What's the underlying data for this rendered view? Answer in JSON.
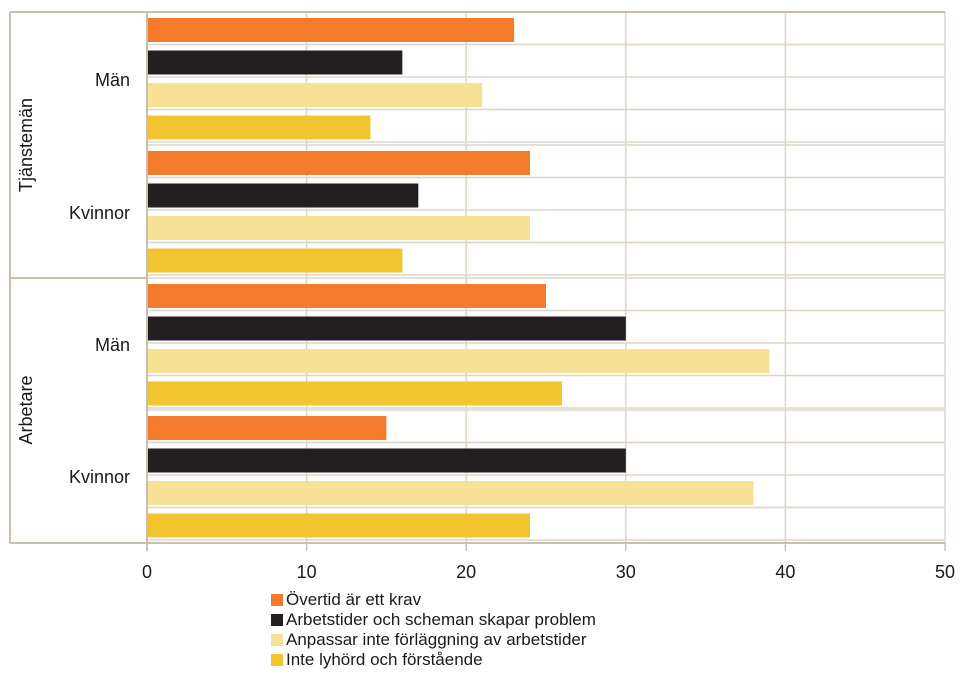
{
  "chart_data": {
    "type": "bar",
    "orientation": "horizontal",
    "title": "",
    "xlabel": "",
    "ylabel": "",
    "xlim": [
      0,
      50
    ],
    "xticks": [
      0,
      10,
      20,
      30,
      40,
      50
    ],
    "grid": true,
    "legend_position": "bottom",
    "groups": [
      {
        "name": "Tjänstemän",
        "subgroups": [
          "Män",
          "Kvinnor"
        ]
      },
      {
        "name": "Arbetare",
        "subgroups": [
          "Män",
          "Kvinnor"
        ]
      }
    ],
    "categories": [
      "Tjänstemän – Män",
      "Tjänstemän – Kvinnor",
      "Arbetare – Män",
      "Arbetare – Kvinnor"
    ],
    "series": [
      {
        "name": "Övertid är ett krav",
        "color": "#f47a2c",
        "values": [
          23,
          24,
          25,
          15
        ]
      },
      {
        "name": "Arbetstider och scheman skapar problem",
        "color": "#231f20",
        "values": [
          16,
          17,
          30,
          30
        ]
      },
      {
        "name": "Anpassar inte förläggning av arbetstider",
        "color": "#f6e195",
        "values": [
          21,
          24,
          39,
          38
        ]
      },
      {
        "name": "Inte lyhörd och förstående",
        "color": "#f2c530",
        "values": [
          14,
          16,
          26,
          24
        ]
      }
    ]
  },
  "colors": {
    "grid": "#ddd5c8",
    "axis": "#c8bfb2"
  }
}
